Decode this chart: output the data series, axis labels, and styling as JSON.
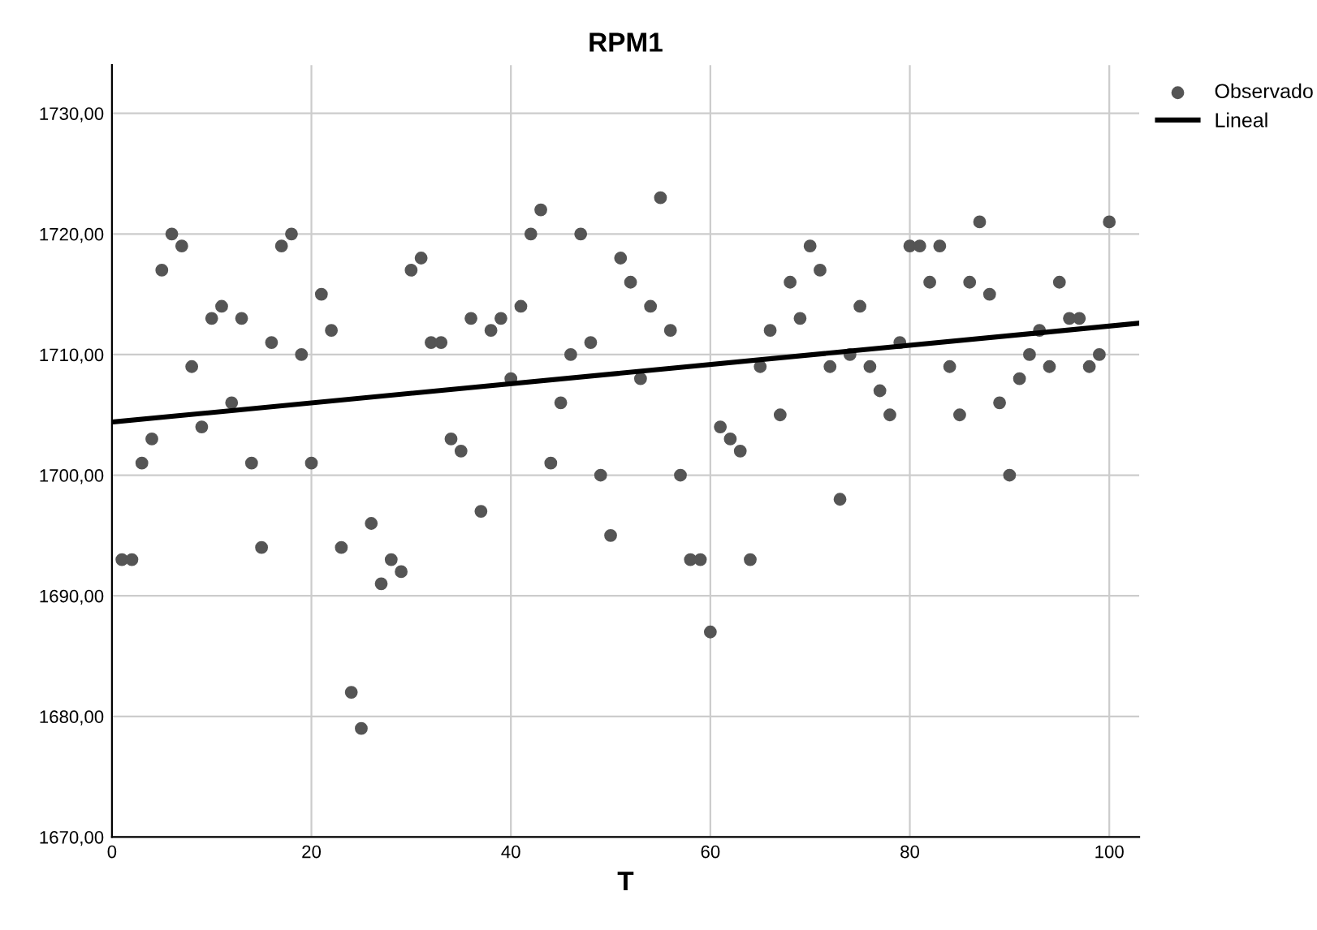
{
  "chart_data": {
    "type": "scatter",
    "title": "RPM1",
    "xlabel": "T",
    "series": [
      {
        "name": "Observado",
        "color": "#555555",
        "marker": "circle",
        "x": [
          1,
          2,
          3,
          4,
          5,
          6,
          7,
          8,
          9,
          10,
          11,
          12,
          13,
          14,
          15,
          16,
          17,
          18,
          19,
          20,
          21,
          22,
          23,
          24,
          25,
          26,
          27,
          28,
          29,
          30,
          31,
          32,
          33,
          34,
          35,
          36,
          37,
          38,
          39,
          40,
          41,
          42,
          43,
          44,
          45,
          46,
          47,
          48,
          49,
          50,
          51,
          52,
          53,
          54,
          55,
          56,
          57,
          58,
          59,
          60,
          61,
          62,
          63,
          64,
          65,
          66,
          67,
          68,
          69,
          70,
          71,
          72,
          73,
          74,
          75,
          76,
          77,
          78,
          79,
          80,
          81,
          82,
          83,
          84,
          85,
          86,
          87,
          88,
          89,
          90,
          91,
          92,
          93,
          94,
          95,
          96,
          97,
          98,
          99,
          100
        ],
        "values": [
          1693,
          1693,
          1701,
          1703,
          1717,
          1720,
          1719,
          1709,
          1704,
          1713,
          1714,
          1706,
          1713,
          1701,
          1694,
          1711,
          1719,
          1720,
          1710,
          1701,
          1715,
          1712,
          1694,
          1682,
          1679,
          1696,
          1691,
          1693,
          1692,
          1717,
          1718,
          1711,
          1711,
          1703,
          1702,
          1713,
          1697,
          1712,
          1713,
          1708,
          1714,
          1720,
          1722,
          1701,
          1706,
          1710,
          1720,
          1711,
          1700,
          1695,
          1718,
          1716,
          1708,
          1714,
          1723,
          1712,
          1700,
          1693,
          1693,
          1687,
          1704,
          1703,
          1702,
          1693,
          1709,
          1712,
          1705,
          1716,
          1713,
          1719,
          1717,
          1709,
          1698,
          1710,
          1714,
          1709,
          1707,
          1705,
          1711,
          1719,
          1719,
          1716,
          1719,
          1709,
          1705,
          1716,
          1721,
          1715,
          1706,
          1700,
          1708,
          1710,
          1712,
          1709,
          1716,
          1713,
          1713,
          1709,
          1710,
          1721
        ]
      },
      {
        "name": "Lineal",
        "type": "line",
        "color": "#000000",
        "line_style": "solid",
        "x": [
          0,
          103
        ],
        "values": [
          1704.4,
          1712.6
        ]
      }
    ],
    "xlim": [
      0,
      103
    ],
    "ylim": [
      1670,
      1734
    ],
    "xticks": [
      0,
      20,
      40,
      60,
      80,
      100
    ],
    "yticks": [
      {
        "value": 1670,
        "label": "1670,00"
      },
      {
        "value": 1680,
        "label": "1680,00"
      },
      {
        "value": 1690,
        "label": "1690,00"
      },
      {
        "value": 1700,
        "label": "1700,00"
      },
      {
        "value": 1710,
        "label": "1710,00"
      },
      {
        "value": 1720,
        "label": "1720,00"
      },
      {
        "value": 1730,
        "label": "1730,00"
      }
    ],
    "grid": true,
    "legend": "top right"
  }
}
